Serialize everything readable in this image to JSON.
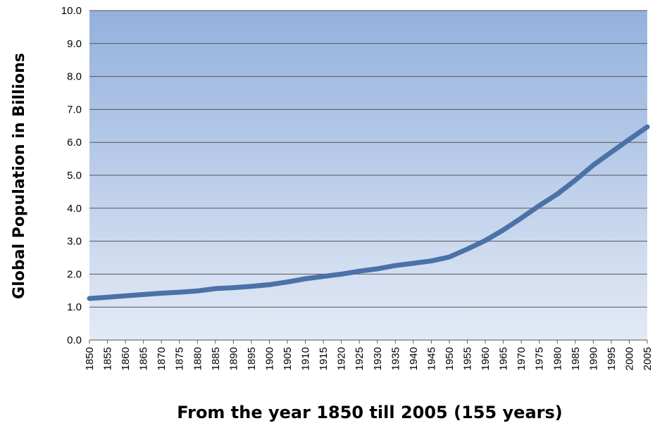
{
  "chart_data": {
    "type": "line",
    "title": "",
    "xlabel": "From the year 1850 till 2005 (155 years)",
    "ylabel": "Global Population in Billions",
    "ylim": [
      0,
      10
    ],
    "y_ticks": [
      "0.0",
      "1.0",
      "2.0",
      "3.0",
      "4.0",
      "5.0",
      "6.0",
      "7.0",
      "8.0",
      "9.0",
      "10.0"
    ],
    "grid": true,
    "legend": "none",
    "categories": [
      "1850",
      "1855",
      "1860",
      "1865",
      "1870",
      "1875",
      "1880",
      "1885",
      "1890",
      "1895",
      "1900",
      "1905",
      "1910",
      "1915",
      "1920",
      "1925",
      "1930",
      "1935",
      "1940",
      "1945",
      "1950",
      "1955",
      "1960",
      "1965",
      "1970",
      "1975",
      "1980",
      "1985",
      "1990",
      "1995",
      "2000",
      "2005"
    ],
    "series": [
      {
        "values": [
          1.26,
          1.3,
          1.34,
          1.38,
          1.42,
          1.45,
          1.49,
          1.56,
          1.59,
          1.63,
          1.68,
          1.76,
          1.86,
          1.93,
          2.0,
          2.09,
          2.16,
          2.26,
          2.33,
          2.4,
          2.52,
          2.76,
          3.02,
          3.34,
          3.7,
          4.08,
          4.43,
          4.85,
          5.31,
          5.7,
          6.09,
          6.47
        ],
        "color": "#4a72a8"
      }
    ],
    "colors": {
      "plot_bg_top": "#94b1dc",
      "plot_bg_bottom": "#e3eaf6",
      "gridline": "#555555"
    }
  }
}
